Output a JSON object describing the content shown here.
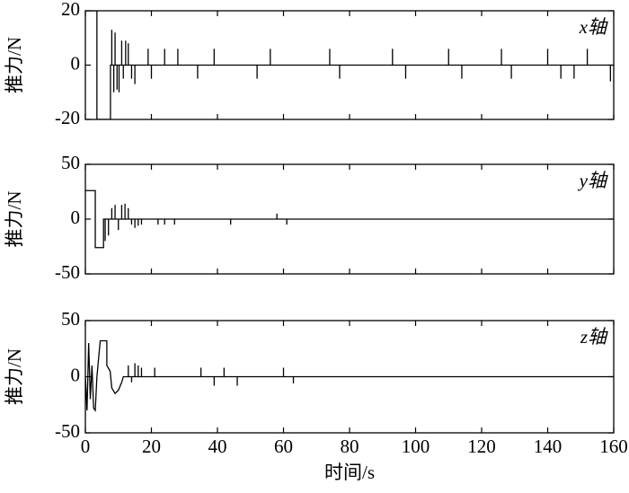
{
  "chart_data": [
    {
      "type": "line",
      "annotation": "x轴",
      "ylabel": "推力/N",
      "color": "#000000",
      "x": [
        0,
        3.5,
        3.5,
        7.6,
        7.6,
        8,
        8,
        8,
        8.6,
        8.6,
        8.6,
        9,
        9,
        9,
        9.6,
        9.6,
        9.6,
        10.2,
        10.2,
        10.2,
        11,
        11,
        11,
        11.5,
        11.5,
        11.5,
        12.2,
        12.2,
        12.2,
        13,
        13,
        13,
        14,
        14,
        14,
        15,
        15,
        15,
        19,
        19,
        19,
        20,
        20,
        20,
        24,
        24,
        24,
        28,
        28,
        28,
        34,
        34,
        34,
        39,
        39,
        39,
        52,
        52,
        52,
        56,
        56,
        56,
        74,
        74,
        74,
        77,
        77,
        77,
        93,
        93,
        93,
        97,
        97,
        97,
        110,
        110,
        110,
        114,
        114,
        114,
        126,
        126,
        126,
        129,
        129,
        129,
        140,
        140,
        140,
        144,
        144,
        144,
        148,
        148,
        148,
        152,
        152,
        152,
        159,
        159,
        159,
        160
      ],
      "values": [
        20,
        20,
        -20,
        -20,
        0,
        0,
        13,
        0,
        0,
        -10,
        0,
        0,
        12,
        0,
        0,
        -9,
        0,
        0,
        -10,
        0,
        0,
        9,
        0,
        0,
        -5,
        0,
        0,
        9,
        0,
        0,
        8,
        0,
        0,
        -5,
        0,
        0,
        -7,
        0,
        0,
        6,
        0,
        0,
        -5,
        0,
        0,
        6,
        0,
        0,
        6,
        0,
        0,
        -5,
        0,
        0,
        6,
        0,
        0,
        -5,
        0,
        0,
        6,
        0,
        0,
        6,
        0,
        0,
        -5,
        0,
        0,
        6,
        0,
        0,
        -5,
        0,
        0,
        6,
        0,
        0,
        -5,
        0,
        0,
        6,
        0,
        0,
        -5,
        0,
        0,
        6,
        0,
        0,
        -5,
        0,
        0,
        -5,
        0,
        0,
        6,
        0,
        0,
        -6,
        0,
        0
      ],
      "xlim": [
        0,
        160
      ],
      "xticks": [
        0,
        20,
        40,
        60,
        80,
        100,
        120,
        140,
        160
      ],
      "ylim": [
        -20,
        20
      ],
      "yticks": [
        -20,
        0,
        20
      ]
    },
    {
      "type": "line",
      "annotation": "y轴",
      "ylabel": "推力/N",
      "color": "#000000",
      "x": [
        0,
        3,
        3,
        5.5,
        5.5,
        6,
        6,
        6,
        7,
        7,
        7,
        8,
        8,
        8,
        9,
        9,
        9,
        10,
        10,
        10,
        11,
        11,
        11,
        12,
        12,
        12,
        13,
        13,
        13,
        14,
        14,
        14,
        15,
        15,
        15,
        16,
        16,
        16,
        17,
        17,
        17,
        22,
        22,
        22,
        24,
        24,
        24,
        27,
        27,
        27,
        44,
        44,
        44,
        58,
        58,
        58,
        61,
        61,
        61,
        160
      ],
      "values": [
        26,
        26,
        -26,
        -26,
        0,
        0,
        -20,
        0,
        0,
        -15,
        0,
        0,
        10,
        0,
        0,
        13,
        0,
        0,
        -10,
        0,
        0,
        13,
        0,
        0,
        14,
        0,
        0,
        10,
        0,
        0,
        -5,
        0,
        0,
        -8,
        0,
        0,
        -6,
        0,
        0,
        -5,
        0,
        0,
        -5,
        0,
        0,
        -5,
        0,
        0,
        -5,
        0,
        0,
        -5,
        0,
        0,
        5,
        0,
        0,
        -5,
        0,
        0
      ],
      "xlim": [
        0,
        160
      ],
      "xticks": [
        0,
        20,
        40,
        60,
        80,
        100,
        120,
        140,
        160
      ],
      "ylim": [
        -50,
        50
      ],
      "yticks": [
        -50,
        0,
        50
      ]
    },
    {
      "type": "line",
      "annotation": "z轴",
      "ylabel": "推力/N",
      "xlabel": "时间/s",
      "color": "#000000",
      "x": [
        0,
        0.5,
        1,
        1.5,
        2,
        2.5,
        3,
        3.5,
        4.5,
        6.5,
        6.5,
        7.5,
        8,
        9,
        10,
        11,
        11.5,
        13,
        13,
        13,
        14,
        14,
        14,
        15,
        15,
        15,
        16,
        16,
        16,
        17,
        17,
        17,
        21,
        21,
        21,
        35,
        35,
        35,
        39,
        39,
        39,
        42,
        42,
        42,
        46,
        46,
        46,
        60,
        60,
        60,
        63,
        63,
        63,
        160
      ],
      "values": [
        0,
        -30,
        30,
        -20,
        10,
        -28,
        -30,
        0,
        32,
        32,
        10,
        5,
        -10,
        -15,
        -12,
        -5,
        0,
        0,
        10,
        0,
        0,
        -5,
        0,
        0,
        12,
        0,
        0,
        10,
        0,
        0,
        8,
        0,
        0,
        8,
        0,
        0,
        8,
        0,
        0,
        -8,
        0,
        0,
        8,
        0,
        0,
        -8,
        0,
        0,
        8,
        0,
        0,
        -6,
        0,
        0
      ],
      "xlim": [
        0,
        160
      ],
      "xticks": [
        0,
        20,
        40,
        60,
        80,
        100,
        120,
        140,
        160
      ],
      "ylim": [
        -50,
        50
      ],
      "yticks": [
        -50,
        0,
        50
      ]
    }
  ]
}
